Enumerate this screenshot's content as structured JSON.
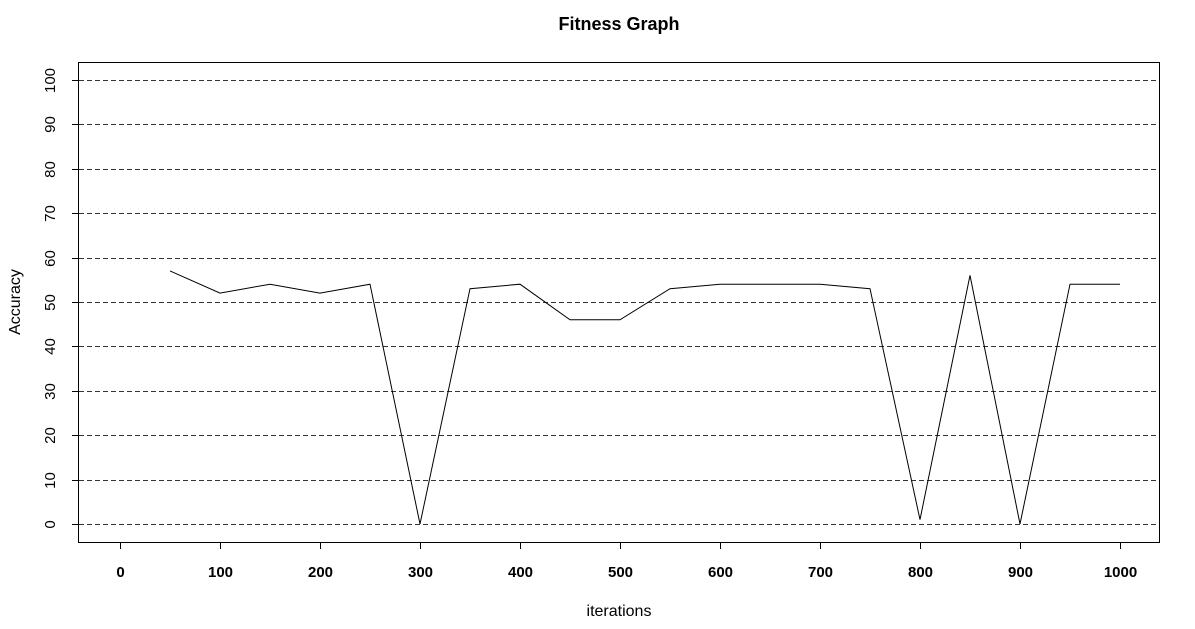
{
  "chart_data": {
    "type": "line",
    "title": "Fitness Graph",
    "xlabel": "iterations",
    "ylabel": "Accuracy",
    "xlim": [
      0,
      1000
    ],
    "ylim": [
      0,
      100
    ],
    "x_ticks": [
      "0",
      "100",
      "200",
      "300",
      "400",
      "500",
      "600",
      "700",
      "800",
      "900",
      "1000"
    ],
    "y_ticks": [
      "0",
      "10",
      "20",
      "30",
      "40",
      "50",
      "60",
      "70",
      "80",
      "90",
      "100"
    ],
    "grid": "horizontal dashed",
    "line_color": "#000000",
    "grid_color": "#333333",
    "series": [
      {
        "x": [
          50,
          100,
          150,
          200,
          250,
          300,
          350,
          400,
          450,
          500,
          550,
          600,
          650,
          700,
          750,
          800,
          850,
          900,
          950,
          1000
        ],
        "values": [
          57,
          52,
          54,
          52,
          54,
          0,
          53,
          54,
          46,
          46,
          53,
          54,
          54,
          54,
          53,
          1,
          56,
          0,
          54,
          54
        ]
      }
    ]
  }
}
